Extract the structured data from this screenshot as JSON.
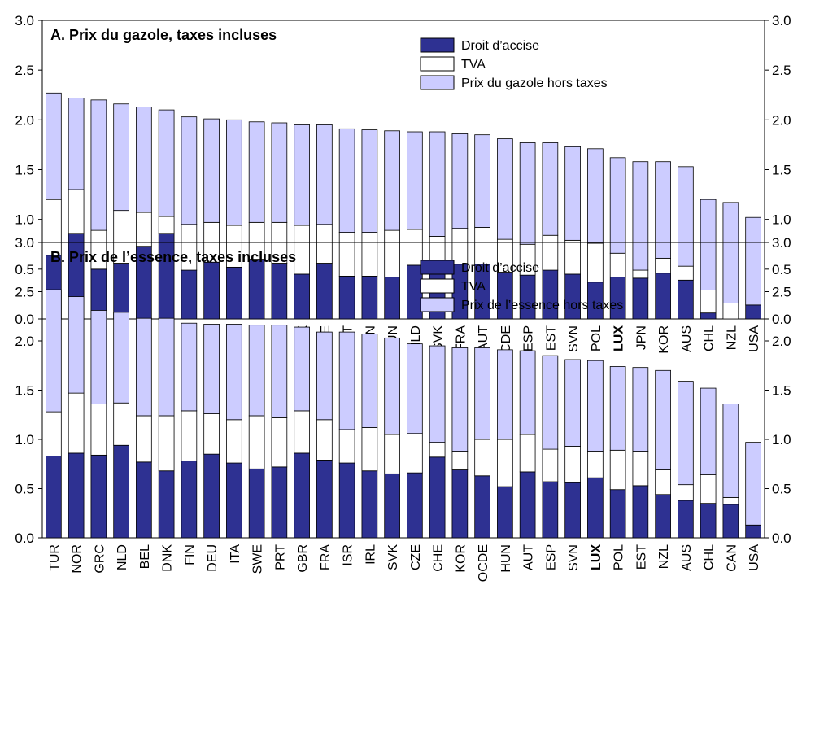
{
  "colors": {
    "excise": "#2e3192",
    "vat": "#ffffff",
    "pretax": "#ccccff",
    "border": "#000000"
  },
  "chart_data": [
    {
      "type": "bar",
      "stacked": true,
      "title": "A. Prix du gazole, taxes incluses",
      "ylim": [
        0,
        3
      ],
      "yticks": [
        "0.0",
        "0.5",
        "1.0",
        "1.5",
        "2.0",
        "2.5",
        "3.0"
      ],
      "legend_position": "top-right",
      "categories": [
        "NOR",
        "GBR",
        "TUR",
        "SWE",
        "ISR",
        "CHE",
        "GRC",
        "ITA",
        "BEL",
        "DEU",
        "IRL",
        "DNK",
        "CZE",
        "PRT",
        "FIN",
        "HUN",
        "NLD",
        "SVK",
        "FRA",
        "AUT",
        "OCDE",
        "ESP",
        "EST",
        "SVN",
        "POL",
        "LUX",
        "JPN",
        "KOR",
        "AUS",
        "CHL",
        "NZL",
        "USA"
      ],
      "highlight": [
        "LUX"
      ],
      "series": [
        {
          "name": "Droit d’accise",
          "key": "excise",
          "values": [
            0.64,
            0.86,
            0.5,
            0.56,
            0.73,
            0.86,
            0.49,
            0.57,
            0.52,
            0.6,
            0.56,
            0.45,
            0.56,
            0.43,
            0.43,
            0.42,
            0.54,
            0.46,
            0.55,
            0.55,
            0.47,
            0.44,
            0.49,
            0.45,
            0.37,
            0.42,
            0.41,
            0.46,
            0.39,
            0.06,
            0.0,
            0.14
          ]
        },
        {
          "name": "TVA",
          "key": "vat",
          "values": [
            0.56,
            0.44,
            0.39,
            0.53,
            0.34,
            0.17,
            0.46,
            0.4,
            0.42,
            0.37,
            0.41,
            0.49,
            0.39,
            0.44,
            0.44,
            0.47,
            0.36,
            0.37,
            0.36,
            0.37,
            0.33,
            0.31,
            0.35,
            0.34,
            0.39,
            0.24,
            0.08,
            0.15,
            0.14,
            0.23,
            0.16,
            0.0
          ]
        },
        {
          "name": "Prix du gazole hors taxes",
          "key": "pretax",
          "values": [
            1.07,
            0.92,
            1.31,
            1.07,
            1.06,
            1.07,
            1.08,
            1.04,
            1.06,
            1.01,
            1.0,
            1.01,
            1.0,
            1.04,
            1.03,
            1.0,
            0.98,
            1.05,
            0.95,
            0.93,
            1.01,
            1.02,
            0.93,
            0.94,
            0.95,
            0.96,
            1.09,
            0.97,
            1.0,
            0.91,
            1.01,
            0.88
          ]
        }
      ]
    },
    {
      "type": "bar",
      "stacked": true,
      "title": "B. Prix de l’essence, taxes incluses",
      "ylim": [
        0,
        3
      ],
      "yticks": [
        "0.0",
        "0.5",
        "1.0",
        "1.5",
        "2.0",
        "2.5",
        "3.0"
      ],
      "legend_position": "top-right",
      "categories": [
        "TUR",
        "NOR",
        "GRC",
        "NLD",
        "BEL",
        "DNK",
        "FIN",
        "DEU",
        "ITA",
        "SWE",
        "PRT",
        "GBR",
        "FRA",
        "ISR",
        "IRL",
        "SVK",
        "CZE",
        "CHE",
        "KOR",
        "OCDE",
        "HUN",
        "AUT",
        "ESP",
        "SVN",
        "LUX",
        "POL",
        "EST",
        "NZL",
        "AUS",
        "CHL",
        "CAN",
        "USA"
      ],
      "highlight": [
        "LUX"
      ],
      "series": [
        {
          "name": "Droit d’accise",
          "key": "excise",
          "values": [
            0.83,
            0.86,
            0.84,
            0.94,
            0.77,
            0.68,
            0.78,
            0.85,
            0.76,
            0.7,
            0.72,
            0.86,
            0.79,
            0.76,
            0.68,
            0.65,
            0.66,
            0.82,
            0.69,
            0.63,
            0.52,
            0.67,
            0.57,
            0.56,
            0.61,
            0.49,
            0.53,
            0.44,
            0.38,
            0.35,
            0.34,
            0.13
          ]
        },
        {
          "name": "TVA",
          "key": "vat",
          "values": [
            0.45,
            0.61,
            0.52,
            0.43,
            0.47,
            0.56,
            0.51,
            0.41,
            0.44,
            0.54,
            0.5,
            0.43,
            0.41,
            0.34,
            0.44,
            0.4,
            0.4,
            0.15,
            0.19,
            0.37,
            0.48,
            0.38,
            0.33,
            0.37,
            0.27,
            0.4,
            0.35,
            0.25,
            0.16,
            0.29,
            0.07,
            0.0
          ]
        },
        {
          "name": "Prix de l’essence hors taxes",
          "key": "pretax",
          "values": [
            1.24,
            0.98,
            0.95,
            0.92,
            0.99,
            0.99,
            0.89,
            0.91,
            0.97,
            0.92,
            0.94,
            0.85,
            0.89,
            0.99,
            0.95,
            0.98,
            0.91,
            0.98,
            1.05,
            0.93,
            0.91,
            0.85,
            0.95,
            0.88,
            0.92,
            0.85,
            0.85,
            1.01,
            1.05,
            0.88,
            0.95,
            0.84
          ]
        }
      ]
    }
  ]
}
